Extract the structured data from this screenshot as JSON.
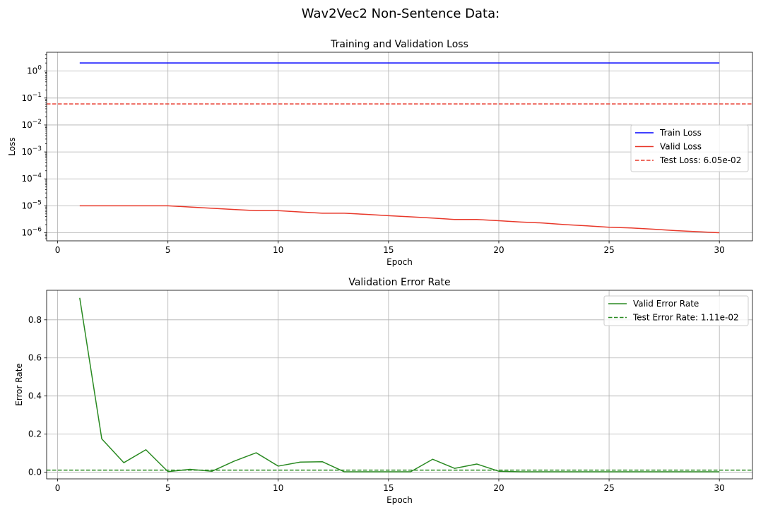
{
  "figure": {
    "suptitle": "Wav2Vec2 Non-Sentence Data:"
  },
  "chart_data": [
    {
      "type": "line",
      "title": "Training and Validation Loss",
      "xlabel": "Epoch",
      "ylabel": "Loss",
      "yscale": "log",
      "xlim": [
        -0.5,
        31.5
      ],
      "ylim": [
        5e-07,
        5
      ],
      "xticks": [
        0,
        5,
        10,
        15,
        20,
        25,
        30
      ],
      "xtick_labels": [
        "0",
        "5",
        "10",
        "15",
        "20",
        "25",
        "30"
      ],
      "ytick_exponents": [
        0,
        -1,
        -2,
        -3,
        -4,
        -5,
        -6
      ],
      "ytick_base": "10",
      "grid": true,
      "legend_position": "center-right",
      "x": [
        1,
        2,
        3,
        4,
        5,
        6,
        7,
        8,
        9,
        10,
        11,
        12,
        13,
        14,
        15,
        16,
        17,
        18,
        19,
        20,
        21,
        22,
        23,
        24,
        25,
        26,
        27,
        28,
        29,
        30
      ],
      "series": [
        {
          "name": "Train Loss",
          "color": "#0000ff",
          "style": "solid",
          "values": [
            2,
            2,
            2,
            2,
            2,
            2,
            2,
            2,
            2,
            2,
            2,
            2,
            2,
            2,
            2,
            2,
            2,
            2,
            2,
            2,
            2,
            2,
            2,
            2,
            2,
            2,
            2,
            2,
            2,
            2
          ]
        },
        {
          "name": "Valid Loss",
          "color": "#e8382a",
          "style": "solid",
          "values": [
            1e-05,
            1e-05,
            1e-05,
            1e-05,
            1e-05,
            9e-06,
            8.1e-06,
            7.3e-06,
            6.6e-06,
            6.6e-06,
            5.9e-06,
            5.3e-06,
            5.3e-06,
            4.8e-06,
            4.3e-06,
            3.9e-06,
            3.5e-06,
            3.1e-06,
            3.1e-06,
            2.8e-06,
            2.5e-06,
            2.3e-06,
            2e-06,
            1.8e-06,
            1.6e-06,
            1.5e-06,
            1.35e-06,
            1.2e-06,
            1.1e-06,
            1e-06
          ]
        }
      ],
      "hlines": [
        {
          "name": "Test Loss: 6.05e-02",
          "value": 0.0605,
          "color": "#e8382a",
          "style": "dashed"
        }
      ]
    },
    {
      "type": "line",
      "title": "Validation Error Rate",
      "xlabel": "Epoch",
      "ylabel": "Error Rate",
      "xlim": [
        -0.5,
        31.5
      ],
      "ylim": [
        -0.035,
        0.955
      ],
      "xticks": [
        0,
        5,
        10,
        15,
        20,
        25,
        30
      ],
      "xtick_labels": [
        "0",
        "5",
        "10",
        "15",
        "20",
        "25",
        "30"
      ],
      "yticks": [
        0.0,
        0.2,
        0.4,
        0.6,
        0.8
      ],
      "ytick_labels": [
        "0.0",
        "0.2",
        "0.4",
        "0.6",
        "0.8"
      ],
      "grid": true,
      "legend_position": "upper-right",
      "x": [
        1,
        2,
        3,
        4,
        5,
        6,
        7,
        8,
        9,
        10,
        11,
        12,
        13,
        14,
        15,
        16,
        17,
        18,
        19,
        20,
        21,
        22,
        23,
        24,
        25,
        26,
        27,
        28,
        29,
        30
      ],
      "series": [
        {
          "name": "Valid Error Rate",
          "color": "#2a8a22",
          "style": "solid",
          "values": [
            0.915,
            0.175,
            0.05,
            0.118,
            0.003,
            0.015,
            0.005,
            0.058,
            0.102,
            0.032,
            0.053,
            0.055,
            0.002,
            0.002,
            0.002,
            0.002,
            0.068,
            0.02,
            0.043,
            0.005,
            0.002,
            0.002,
            0.002,
            0.002,
            0.002,
            0.002,
            0.002,
            0.002,
            0.002,
            0.002
          ]
        }
      ],
      "hlines": [
        {
          "name": "Test Error Rate: 1.11e-02",
          "value": 0.0111,
          "color": "#2a8a22",
          "style": "dashed"
        }
      ]
    }
  ]
}
